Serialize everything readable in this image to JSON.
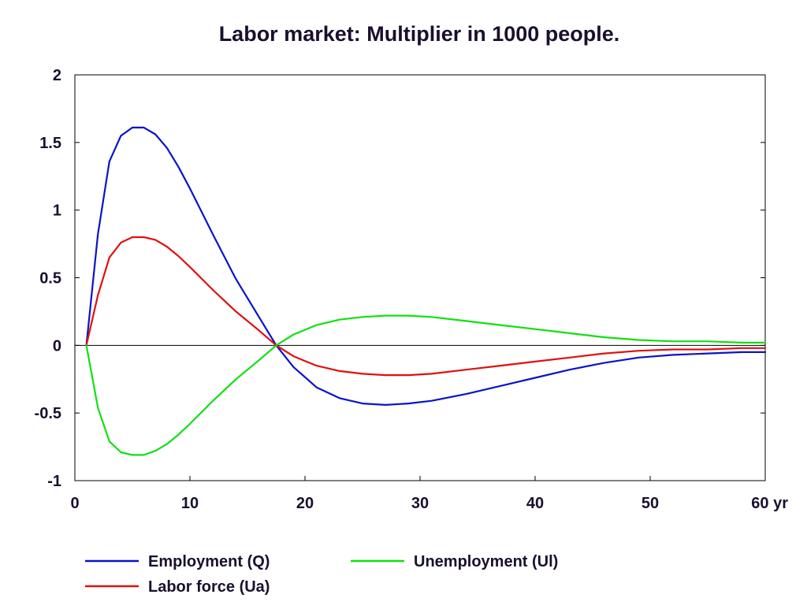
{
  "chart_data": {
    "type": "line",
    "title": "Labor market: Multiplier in 1000 people.",
    "xlabel": "",
    "ylabel": "",
    "xlim": [
      0,
      60
    ],
    "ylim": [
      -1,
      2
    ],
    "x_ticks": [
      0,
      10,
      20,
      30,
      40,
      50,
      60
    ],
    "x_tick_labels": [
      "0",
      "10",
      "20",
      "30",
      "40",
      "50",
      "60 yr"
    ],
    "y_ticks": [
      -1,
      -0.5,
      0,
      0.5,
      1,
      1.5,
      2
    ],
    "y_tick_labels": [
      "-1",
      "-0.5",
      "0",
      "0.5",
      "1",
      "1.5",
      "2"
    ],
    "grid": false,
    "zero_line": true,
    "legend": "bottom",
    "x": [
      1,
      2,
      3,
      4,
      5,
      6,
      7,
      8,
      9,
      10,
      12,
      14,
      16,
      17.5,
      19,
      21,
      23,
      25,
      27,
      29,
      31,
      34,
      37,
      40,
      43,
      46,
      49,
      52,
      55,
      58,
      60
    ],
    "series": [
      {
        "name": "Employment (Q)",
        "color": "#0a14c8",
        "values": [
          0,
          0.82,
          1.36,
          1.55,
          1.61,
          1.61,
          1.56,
          1.46,
          1.32,
          1.16,
          0.82,
          0.49,
          0.21,
          0.0,
          -0.16,
          -0.31,
          -0.39,
          -0.43,
          -0.44,
          -0.43,
          -0.41,
          -0.36,
          -0.3,
          -0.24,
          -0.18,
          -0.13,
          -0.09,
          -0.07,
          -0.06,
          -0.05,
          -0.05
        ]
      },
      {
        "name": "Labor force (Ua)",
        "color": "#e01010",
        "values": [
          0,
          0.37,
          0.65,
          0.76,
          0.8,
          0.8,
          0.78,
          0.73,
          0.66,
          0.58,
          0.41,
          0.25,
          0.11,
          0.0,
          -0.08,
          -0.15,
          -0.19,
          -0.21,
          -0.22,
          -0.22,
          -0.21,
          -0.18,
          -0.15,
          -0.12,
          -0.09,
          -0.06,
          -0.04,
          -0.03,
          -0.03,
          -0.02,
          -0.02
        ]
      },
      {
        "name": "Unemployment (Ul)",
        "color": "#10e010",
        "values": [
          0,
          -0.46,
          -0.71,
          -0.79,
          -0.81,
          -0.81,
          -0.78,
          -0.73,
          -0.66,
          -0.58,
          -0.41,
          -0.25,
          -0.11,
          0.0,
          0.08,
          0.15,
          0.19,
          0.21,
          0.22,
          0.22,
          0.21,
          0.18,
          0.15,
          0.12,
          0.09,
          0.06,
          0.04,
          0.03,
          0.03,
          0.02,
          0.02
        ]
      }
    ]
  }
}
